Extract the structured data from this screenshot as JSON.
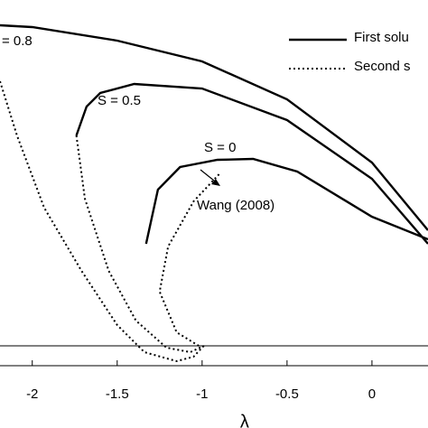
{
  "chart_data": {
    "type": "line",
    "xlabel": "λ",
    "xlim": [
      -2.19,
      0.33
    ],
    "xticks": [
      -2,
      -1.5,
      -1,
      -0.5,
      0
    ],
    "ylim": [
      -0.22,
      3.83
    ],
    "hline": 0,
    "annotations": [
      "= 0.8",
      "S = 0.5",
      "S = 0",
      "Wang (2008)"
    ],
    "legend": {
      "position": "upper right",
      "entries": [
        {
          "label": "First solu",
          "dash": "solid"
        },
        {
          "label": "Second s",
          "dash": "dotted"
        }
      ]
    },
    "series": [
      {
        "dash": "solid",
        "color": "#000000",
        "x": [
          -2.19,
          -2,
          -1.5,
          -1,
          -0.5,
          0,
          0.33
        ],
        "values": [
          3.55,
          3.53,
          3.38,
          3.15,
          2.73,
          2.03,
          1.28
        ]
      },
      {
        "dash": "solid",
        "color": "#000000",
        "x": [
          -1.74,
          -1.68,
          -1.6,
          -1.4,
          -1.0,
          -0.5,
          0,
          0.33
        ],
        "values": [
          2.33,
          2.65,
          2.8,
          2.9,
          2.85,
          2.5,
          1.85,
          1.13
        ]
      },
      {
        "dash": "solid",
        "color": "#000000",
        "x": [
          -1.33,
          -1.26,
          -1.13,
          -0.91,
          -0.7,
          -0.44,
          0,
          0.33
        ],
        "values": [
          1.13,
          1.73,
          1.98,
          2.06,
          2.07,
          1.93,
          1.43,
          1.18
        ]
      },
      {
        "dash": "dotted",
        "color": "#000000",
        "x": [
          -2.19,
          -2.09,
          -1.93,
          -1.71,
          -1.5,
          -1.34,
          -1.15,
          -1.05,
          -0.99
        ],
        "values": [
          2.93,
          2.33,
          1.53,
          0.83,
          0.23,
          -0.07,
          -0.17,
          -0.12,
          0
        ]
      },
      {
        "dash": "dotted",
        "color": "#000000",
        "x": [
          -1.74,
          -1.69,
          -1.55,
          -1.39,
          -1.21,
          -1.07,
          -0.99
        ],
        "values": [
          2.33,
          1.63,
          0.83,
          0.28,
          -0.02,
          -0.07,
          0
        ]
      },
      {
        "dash": "dotted",
        "color": "#000000",
        "x": [
          -0.9,
          -1.05,
          -1.2,
          -1.25,
          -1.15,
          -1.02
        ],
        "values": [
          1.9,
          1.6,
          1.1,
          0.6,
          0.15,
          0
        ]
      }
    ]
  }
}
